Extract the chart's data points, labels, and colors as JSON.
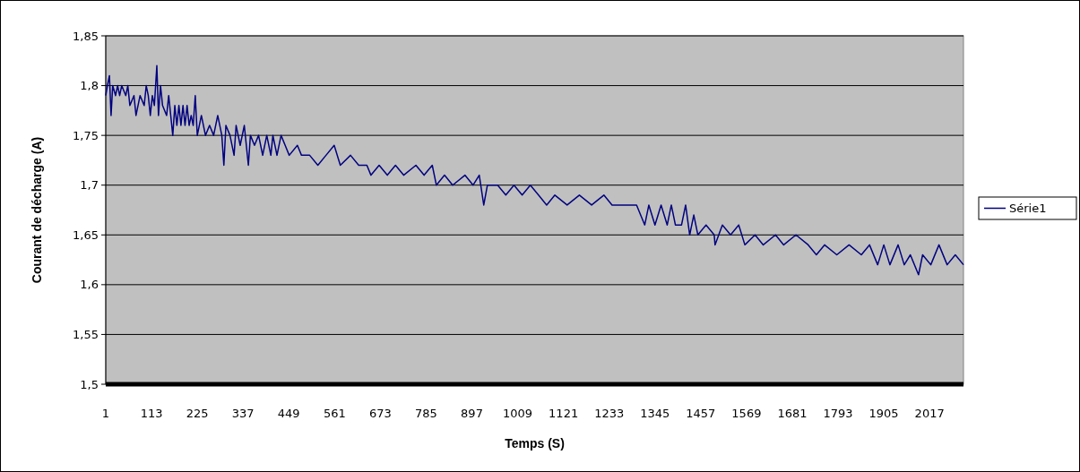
{
  "chart_data": {
    "type": "line",
    "xlabel": "Temps (S)",
    "ylabel": "Courant de décharge (A)",
    "xlim": [
      1,
      2100
    ],
    "xticks": [
      1,
      113,
      225,
      337,
      449,
      561,
      673,
      785,
      897,
      1009,
      1121,
      1233,
      1345,
      1457,
      1569,
      1681,
      1793,
      1905,
      2017
    ],
    "ylim": [
      1.5,
      1.85
    ],
    "yticks": [
      {
        "value": 1.5,
        "label": "1,5"
      },
      {
        "value": 1.55,
        "label": "1,55"
      },
      {
        "value": 1.6,
        "label": "1,6"
      },
      {
        "value": 1.65,
        "label": "1,65"
      },
      {
        "value": 1.7,
        "label": "1,7"
      },
      {
        "value": 1.75,
        "label": "1,75"
      },
      {
        "value": 1.8,
        "label": "1,8"
      },
      {
        "value": 1.85,
        "label": "1,85"
      }
    ],
    "grid": "y",
    "legend": "right",
    "marker": "none",
    "line_style": "solid",
    "series": [
      {
        "name": "Série1",
        "color": "#000080",
        "x": [
          1,
          5,
          10,
          14,
          18,
          25,
          30,
          35,
          40,
          50,
          55,
          60,
          70,
          75,
          85,
          95,
          100,
          105,
          110,
          115,
          120,
          126,
          130,
          135,
          140,
          150,
          155,
          165,
          170,
          175,
          180,
          185,
          190,
          195,
          200,
          205,
          210,
          215,
          220,
          225,
          235,
          245,
          255,
          265,
          275,
          285,
          290,
          295,
          305,
          315,
          320,
          330,
          340,
          350,
          355,
          365,
          375,
          385,
          395,
          405,
          410,
          420,
          430,
          440,
          450,
          470,
          480,
          500,
          520,
          540,
          560,
          575,
          600,
          620,
          640,
          650,
          670,
          690,
          710,
          730,
          760,
          780,
          800,
          810,
          830,
          850,
          880,
          900,
          915,
          926,
          935,
          960,
          980,
          1000,
          1020,
          1040,
          1060,
          1080,
          1100,
          1130,
          1160,
          1190,
          1220,
          1240,
          1300,
          1320,
          1330,
          1345,
          1360,
          1375,
          1385,
          1395,
          1410,
          1420,
          1430,
          1440,
          1450,
          1470,
          1490,
          1492,
          1510,
          1530,
          1550,
          1565,
          1590,
          1610,
          1640,
          1660,
          1690,
          1720,
          1740,
          1760,
          1790,
          1820,
          1850,
          1870,
          1890,
          1905,
          1920,
          1940,
          1955,
          1970,
          1990,
          2000,
          2020,
          2040,
          2060,
          2080,
          2100
        ],
        "values": [
          1.79,
          1.8,
          1.81,
          1.77,
          1.8,
          1.79,
          1.8,
          1.79,
          1.8,
          1.79,
          1.8,
          1.78,
          1.79,
          1.77,
          1.79,
          1.78,
          1.8,
          1.79,
          1.77,
          1.79,
          1.78,
          1.82,
          1.77,
          1.8,
          1.78,
          1.77,
          1.79,
          1.75,
          1.78,
          1.76,
          1.78,
          1.76,
          1.78,
          1.76,
          1.78,
          1.76,
          1.77,
          1.76,
          1.79,
          1.75,
          1.77,
          1.75,
          1.76,
          1.75,
          1.77,
          1.75,
          1.72,
          1.76,
          1.75,
          1.73,
          1.76,
          1.74,
          1.76,
          1.72,
          1.75,
          1.74,
          1.75,
          1.73,
          1.75,
          1.73,
          1.75,
          1.73,
          1.75,
          1.74,
          1.73,
          1.74,
          1.73,
          1.73,
          1.72,
          1.73,
          1.74,
          1.72,
          1.73,
          1.72,
          1.72,
          1.71,
          1.72,
          1.71,
          1.72,
          1.71,
          1.72,
          1.71,
          1.72,
          1.7,
          1.71,
          1.7,
          1.71,
          1.7,
          1.71,
          1.68,
          1.7,
          1.7,
          1.69,
          1.7,
          1.69,
          1.7,
          1.69,
          1.68,
          1.69,
          1.68,
          1.69,
          1.68,
          1.69,
          1.68,
          1.68,
          1.66,
          1.68,
          1.66,
          1.68,
          1.66,
          1.68,
          1.66,
          1.66,
          1.68,
          1.65,
          1.67,
          1.65,
          1.66,
          1.65,
          1.64,
          1.66,
          1.65,
          1.66,
          1.64,
          1.65,
          1.64,
          1.65,
          1.64,
          1.65,
          1.64,
          1.63,
          1.64,
          1.63,
          1.64,
          1.63,
          1.64,
          1.62,
          1.64,
          1.62,
          1.64,
          1.62,
          1.63,
          1.61,
          1.63,
          1.62,
          1.64,
          1.62,
          1.63,
          1.62
        ]
      }
    ]
  }
}
